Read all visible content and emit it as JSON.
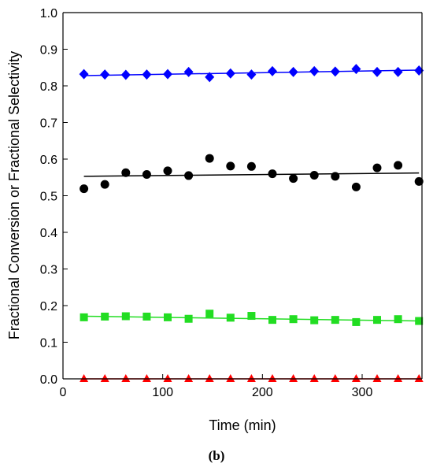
{
  "chart_data": {
    "type": "scatter",
    "caption": "(b)",
    "xlabel": "Time (min)",
    "ylabel": "Fractional Conversion or Fractional Selectivity",
    "xlim": [
      0,
      360
    ],
    "ylim": [
      0.0,
      1.0
    ],
    "x_ticks": [
      0,
      100,
      200,
      300
    ],
    "x_tick_labels": [
      "0",
      "100",
      "200",
      "300"
    ],
    "y_ticks": [
      0.0,
      0.1,
      0.2,
      0.3,
      0.4,
      0.5,
      0.6,
      0.7,
      0.8,
      0.9,
      1.0
    ],
    "y_tick_labels": [
      "0.0",
      "0.1",
      "0.2",
      "0.3",
      "0.4",
      "0.5",
      "0.6",
      "0.7",
      "0.8",
      "0.9",
      "1.0"
    ],
    "grid": false,
    "series": [
      {
        "marker": "diamond",
        "color": "#0000ff",
        "x": [
          21,
          42,
          63,
          84,
          105,
          126,
          147,
          168,
          189,
          210,
          231,
          252,
          273,
          294,
          315,
          336,
          357
        ],
        "y": [
          0.832,
          0.831,
          0.83,
          0.831,
          0.832,
          0.838,
          0.824,
          0.834,
          0.831,
          0.84,
          0.838,
          0.84,
          0.839,
          0.846,
          0.838,
          0.838,
          0.842
        ],
        "trend": [
          [
            21,
            0.828
          ],
          [
            357,
            0.843
          ]
        ]
      },
      {
        "marker": "circle",
        "color": "#000000",
        "x": [
          21,
          42,
          63,
          84,
          105,
          126,
          147,
          168,
          189,
          210,
          231,
          252,
          273,
          294,
          315,
          336,
          357
        ],
        "y": [
          0.519,
          0.531,
          0.563,
          0.558,
          0.568,
          0.555,
          0.602,
          0.581,
          0.58,
          0.56,
          0.547,
          0.556,
          0.553,
          0.524,
          0.576,
          0.583,
          0.539
        ],
        "trend": [
          [
            21,
            0.553
          ],
          [
            357,
            0.562
          ]
        ]
      },
      {
        "marker": "square",
        "color": "#22dd22",
        "x": [
          21,
          42,
          63,
          84,
          105,
          126,
          147,
          168,
          189,
          210,
          231,
          252,
          273,
          294,
          315,
          336,
          357
        ],
        "y": [
          0.168,
          0.17,
          0.171,
          0.17,
          0.168,
          0.164,
          0.178,
          0.167,
          0.172,
          0.161,
          0.163,
          0.16,
          0.161,
          0.155,
          0.161,
          0.163,
          0.158
        ],
        "trend": [
          [
            21,
            0.171
          ],
          [
            357,
            0.158
          ]
        ]
      },
      {
        "marker": "triangle",
        "color": "#ff0000",
        "x": [
          21,
          42,
          63,
          84,
          105,
          126,
          147,
          168,
          189,
          210,
          231,
          252,
          273,
          294,
          315,
          336,
          357
        ],
        "y": [
          0.0,
          0.0,
          0.0,
          0.0,
          0.0,
          0.0,
          0.0,
          0.0,
          0.0,
          0.0,
          0.0,
          0.0,
          0.0,
          0.0,
          0.0,
          0.0,
          0.0
        ],
        "trend": [
          [
            21,
            0.0
          ],
          [
            357,
            0.0
          ]
        ]
      }
    ]
  }
}
